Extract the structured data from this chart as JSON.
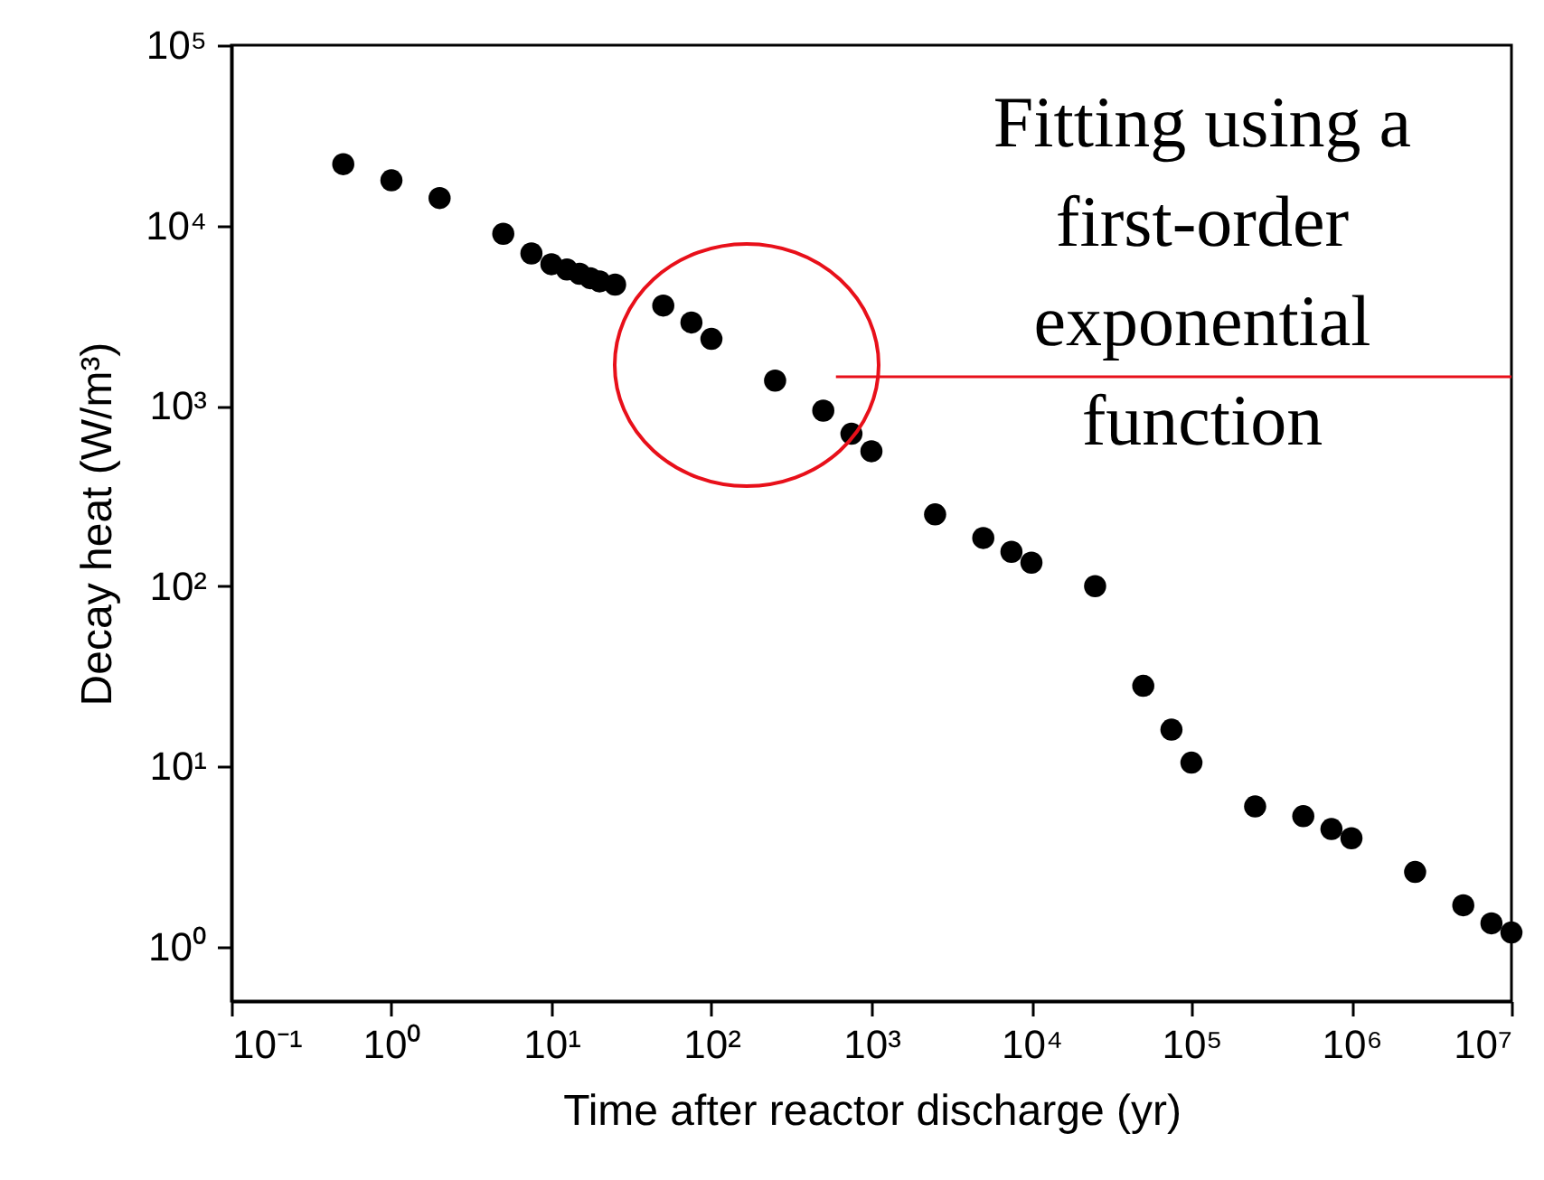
{
  "chart_data": {
    "type": "scatter",
    "xlabel": "Time after reactor discharge (yr)",
    "ylabel": "Decay heat (W/m³)",
    "annotations": [
      "Fitting using a first-order exponential function"
    ],
    "x": [
      0.5,
      1,
      2,
      5,
      7.5,
      10,
      12.5,
      15,
      17.5,
      20,
      25,
      50,
      75,
      100,
      250,
      500,
      750,
      1000,
      2500,
      5000,
      7500,
      10000,
      25000,
      50000,
      75000,
      100000,
      250000,
      500000,
      750000,
      1000000,
      2500000,
      5000000,
      7500000,
      10000000
    ],
    "series": [
      {
        "color": "#000000",
        "marker": "circle",
        "values": [
          21900,
          17800,
          14200,
          9000,
          7000,
          6100,
          5700,
          5400,
          5100,
          4900,
          4700,
          3600,
          2900,
          2350,
          1380,
          940,
          700,
          560,
          250,
          185,
          155,
          135,
          100,
          28,
          16,
          10.5,
          6,
          5.3,
          4.5,
          4,
          2.6,
          1.7,
          1.35,
          1.2
        ]
      },
      {
        "type": "line",
        "color": "#e8101a",
        "marker": "none",
        "x": [
          600,
          10000000
        ],
        "values": [
          1450,
          1450
        ]
      }
    ],
    "log": "xy",
    "xlim": [
      0.1,
      10000000
    ],
    "ylim": [
      0.5,
      100000
    ],
    "xticks": [
      {
        "value": 0.1,
        "label": "10⁻¹"
      },
      {
        "value": 1,
        "label": "10⁰"
      },
      {
        "value": 10,
        "label": "10¹"
      },
      {
        "value": 100,
        "label": "10²"
      },
      {
        "value": 1000,
        "label": "10³"
      },
      {
        "value": 10000,
        "label": "10⁴"
      },
      {
        "value": 100000,
        "label": "10⁵"
      },
      {
        "value": 1000000,
        "label": "10⁶"
      },
      {
        "value": 10000000,
        "label": "10⁷"
      }
    ],
    "yticks": [
      {
        "value": 1,
        "label": "10⁰"
      },
      {
        "value": 10,
        "label": "10¹"
      },
      {
        "value": 100,
        "label": "10²"
      },
      {
        "value": 1000,
        "label": "10³"
      },
      {
        "value": 10000,
        "label": "10⁴"
      },
      {
        "value": 100000,
        "label": "10⁵"
      }
    ]
  }
}
